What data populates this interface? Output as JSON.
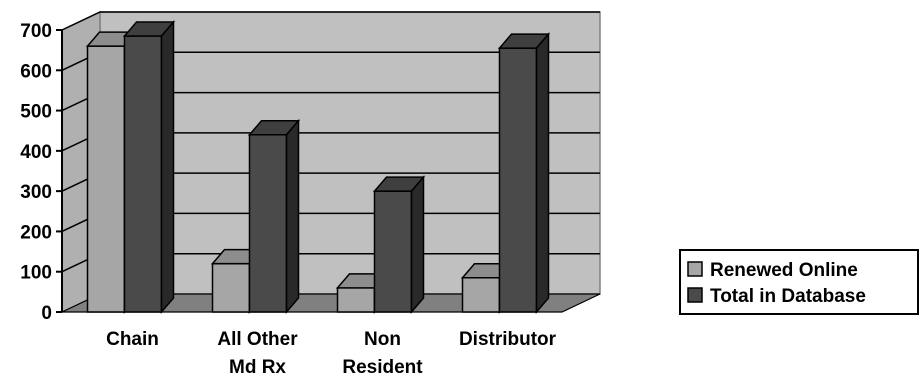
{
  "chart_data": {
    "type": "bar",
    "categories": [
      [
        "Chain"
      ],
      [
        "All Other",
        "Md Rx"
      ],
      [
        "Non",
        "Resident"
      ],
      [
        "Distributor"
      ]
    ],
    "series": [
      {
        "name": "Renewed Online",
        "values": [
          660,
          120,
          60,
          85
        ],
        "color": "#a6a6a6"
      },
      {
        "name": "Total in Database",
        "values": [
          685,
          440,
          300,
          655
        ],
        "color": "#4a4a4a"
      }
    ],
    "ylim": [
      0,
      700
    ],
    "y_ticks": [
      "0",
      "100",
      "200",
      "300",
      "400",
      "500",
      "600",
      "700"
    ],
    "grid": true,
    "legend_position": "right",
    "wall_color": "#c0c0c0",
    "floor_color": "#808080"
  }
}
